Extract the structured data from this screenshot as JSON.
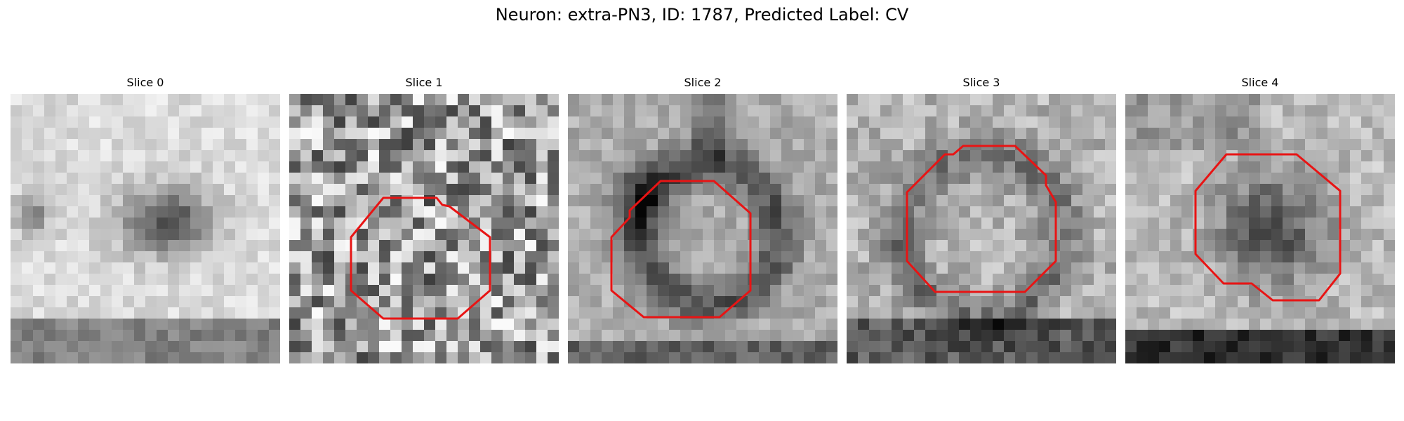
{
  "figure": {
    "title": "Neuron: extra-PN3, ID: 1787, Predicted Label: CV"
  },
  "panels": [
    {
      "title": "Slice 0"
    },
    {
      "title": "Slice 1"
    },
    {
      "title": "Slice 2"
    },
    {
      "title": "Slice 3"
    },
    {
      "title": "Slice 4"
    }
  ],
  "colors": {
    "contour": "#e81414",
    "background": "#ffffff"
  }
}
